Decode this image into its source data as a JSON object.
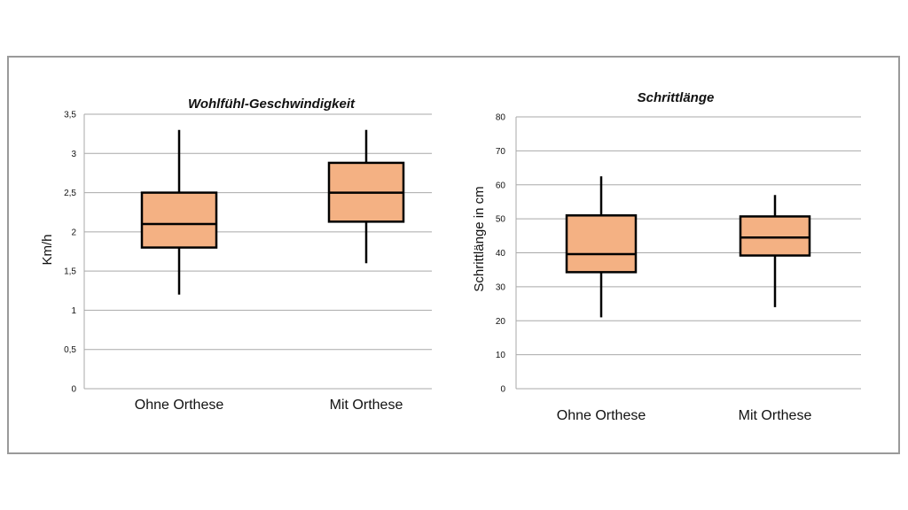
{
  "chart_data": [
    {
      "type": "boxplot",
      "title": "Wohlfühl-Geschwindigkeit",
      "xlabel": "",
      "ylabel": "Km/h",
      "ylim": [
        0,
        3.5
      ],
      "yticks": [
        0,
        0.5,
        1,
        1.5,
        2,
        2.5,
        3,
        3.5
      ],
      "ytick_labels": [
        "0",
        "0,5",
        "1",
        "1,5",
        "2",
        "2,5",
        "3",
        "3,5"
      ],
      "categories": [
        "Ohne Orthese",
        "Mit Orthese"
      ],
      "boxes": [
        {
          "min": 1.2,
          "q1": 1.8,
          "median": 2.1,
          "q3": 2.5,
          "max": 3.3
        },
        {
          "min": 1.6,
          "q1": 2.13,
          "median": 2.5,
          "q3": 2.88,
          "max": 3.3
        }
      ],
      "grid": true
    },
    {
      "type": "boxplot",
      "title": "Schrittlänge",
      "xlabel": "",
      "ylabel": "Schrittlänge  in cm",
      "ylim": [
        0,
        80
      ],
      "yticks": [
        0,
        10,
        20,
        30,
        40,
        50,
        60,
        70,
        80
      ],
      "ytick_labels": [
        "0",
        "10",
        "20",
        "30",
        "40",
        "50",
        "60",
        "70",
        "80"
      ],
      "categories": [
        "Ohne Orthese",
        "Mit Orthese"
      ],
      "boxes": [
        {
          "min": 21,
          "q1": 34.3,
          "median": 39.6,
          "q3": 51,
          "max": 62.5
        },
        {
          "min": 24,
          "q1": 39.2,
          "median": 44.5,
          "q3": 50.7,
          "max": 57
        }
      ],
      "grid": true
    }
  ],
  "colors": {
    "box_fill": "#f4b183",
    "grid": "#a9a9a9",
    "frame": "#9a9a9a"
  }
}
